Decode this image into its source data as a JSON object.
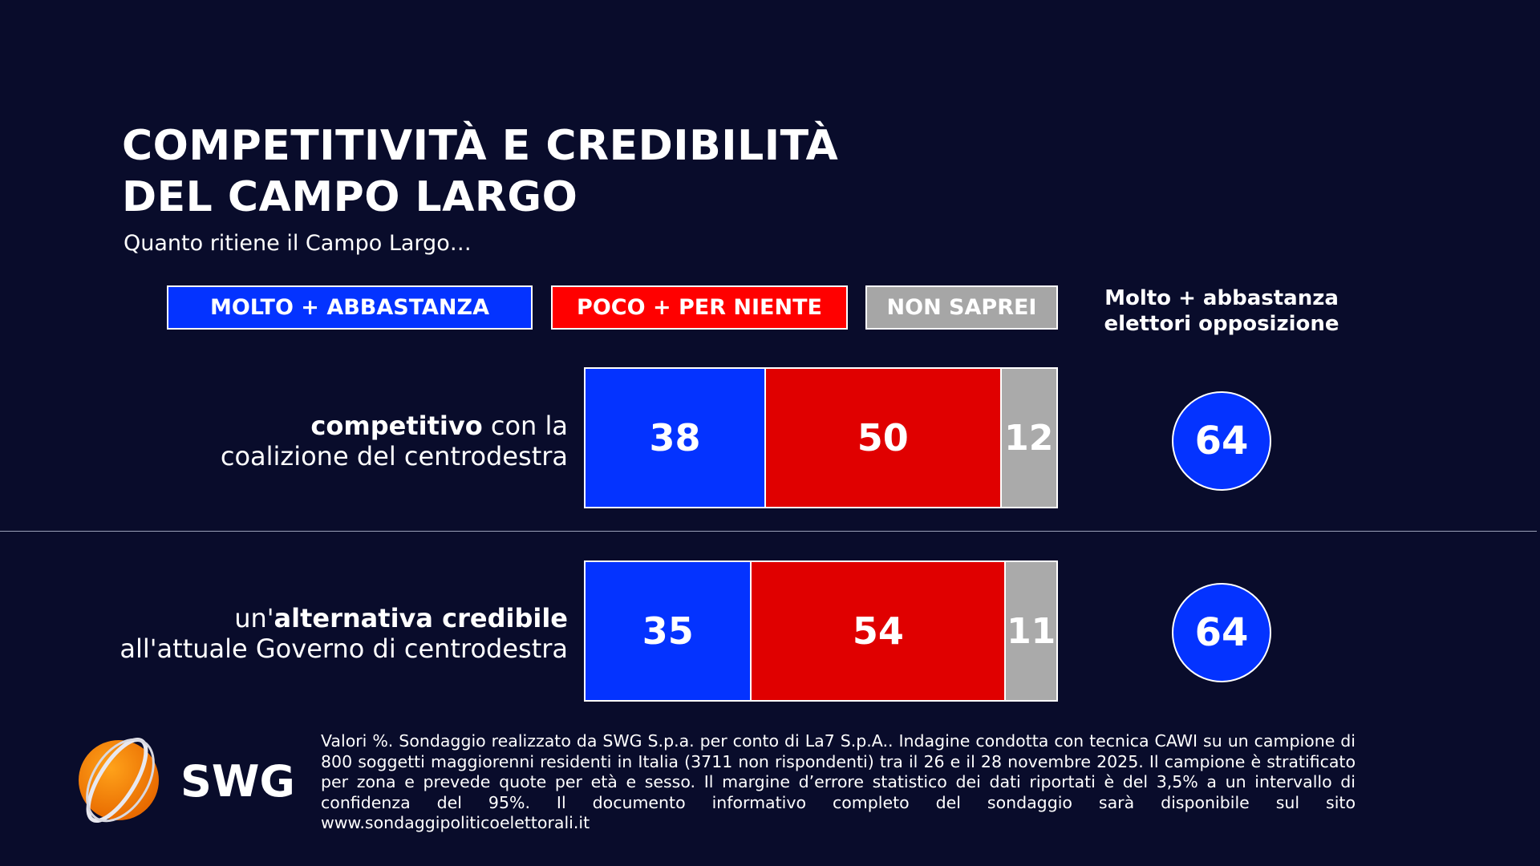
{
  "title_lines": [
    "COMPETITIVITÀ E CREDIBILITÀ",
    "DEL CAMPO LARGO"
  ],
  "subtitle": "Quanto ritiene il Campo Largo…",
  "chart_data": {
    "type": "bar",
    "orientation": "horizontal-stacked-100",
    "legend": [
      "MOLTO + ABBASTANZA",
      "POCO + PER NIENTE",
      "NON SAPREI"
    ],
    "colors": {
      "MOLTO + ABBASTANZA": "#0433ff",
      "POCO + PER NIENTE": "#e00000",
      "NON SAPREI": "#aaaaaa"
    },
    "categories": [
      {
        "bold": "competitivo",
        "rest1": " con la",
        "line2": "coalizione del centrodestra"
      },
      {
        "pre": "un'",
        "bold": "alternativa credibile",
        "line2": "all'attuale Governo di centrodestra"
      }
    ],
    "series": [
      {
        "name": "MOLTO + ABBASTANZA",
        "values": [
          38,
          35
        ]
      },
      {
        "name": "POCO + PER NIENTE",
        "values": [
          50,
          54
        ]
      },
      {
        "name": "NON SAPREI",
        "values": [
          12,
          11
        ]
      }
    ],
    "side_header": [
      "Molto + abbastanza",
      "elettori opposizione"
    ],
    "side_values": [
      64,
      64
    ]
  },
  "footer": "Valori %. Sondaggio realizzato da SWG S.p.a. per conto di La7 S.p.A.. Indagine condotta con tecnica CAWI su un campione di 800 soggetti maggiorenni residenti in Italia (3711 non rispondenti) tra il 26 e il 28 novembre 2025. Il campione è stratificato per zona e prevede quote per età e sesso. Il margine d’errore statistico dei dati riportati è del 3,5% a un intervallo di confidenza del 95%. Il documento informativo completo del sondaggio sarà disponibile sul sito www.sondaggipoliticoelettorali.it",
  "logo_text": "SWG"
}
